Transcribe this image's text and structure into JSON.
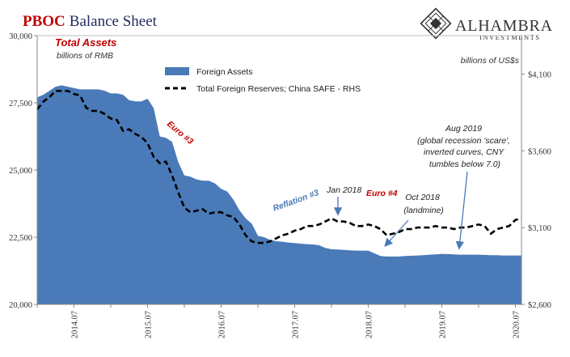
{
  "title_red": "PBOC",
  "title_navy": "Balance Sheet",
  "logo": {
    "name": "ALHAMBRA",
    "sub": "INVESTMENTS"
  },
  "colors": {
    "area": "#4a7ab8",
    "dash": "#000000",
    "red": "#c00000",
    "navy": "#1f2a5a",
    "blue_text": "#4a7ab8",
    "dark_text": "#333333"
  },
  "left_axis": {
    "title": "Total Assets",
    "unit": "billions of RMB",
    "ticks": [
      "30,000",
      "27,500",
      "25,000",
      "22,500",
      "20,000"
    ]
  },
  "right_axis": {
    "unit": "billions of US$s",
    "ticks": [
      "$4,100",
      "$3,600",
      "$3,100",
      "$2,600"
    ]
  },
  "legend": {
    "position": "top-left",
    "items": [
      "Foreign Assets",
      "Total Foreign Reserves; China SAFE - RHS"
    ]
  },
  "annotations": {
    "euro3": "Euro #3",
    "reflation3": "Reflation #3",
    "jan2018": "Jan 2018",
    "euro4": "Euro #4",
    "oct2018": [
      "Oct 2018",
      "(landmine)"
    ],
    "aug2019": [
      "Aug 2019",
      "(global recession 'scare',",
      "inverted curves, CNY",
      "tumbles below 7.0)"
    ]
  },
  "chart_data": {
    "type": "area",
    "title": "PBOC Balance Sheet",
    "x_ticks": [
      "2014.07",
      "2015.07",
      "2016.07",
      "2017.07",
      "2018.07",
      "2019.07",
      "2020.07"
    ],
    "x_range": [
      "2014-01",
      "2020-08"
    ],
    "ylim_left": [
      20000,
      30000
    ],
    "ylim_right": [
      2600,
      4350
    ],
    "grid": false,
    "legend_placement": "top-left",
    "series": [
      {
        "name": "Foreign Assets",
        "type": "area",
        "axis": "left",
        "x": [
          "2014-01",
          "2014-02",
          "2014-03",
          "2014-04",
          "2014-05",
          "2014-06",
          "2014-07",
          "2014-08",
          "2014-09",
          "2014-10",
          "2014-11",
          "2014-12",
          "2015-01",
          "2015-02",
          "2015-03",
          "2015-04",
          "2015-05",
          "2015-06",
          "2015-07",
          "2015-08",
          "2015-09",
          "2015-10",
          "2015-11",
          "2015-12",
          "2016-01",
          "2016-02",
          "2016-03",
          "2016-04",
          "2016-05",
          "2016-06",
          "2016-07",
          "2016-08",
          "2016-09",
          "2016-10",
          "2016-11",
          "2016-12",
          "2017-01",
          "2017-02",
          "2017-03",
          "2017-04",
          "2017-05",
          "2017-06",
          "2017-07",
          "2017-08",
          "2017-09",
          "2017-10",
          "2017-11",
          "2017-12",
          "2018-01",
          "2018-02",
          "2018-03",
          "2018-04",
          "2018-05",
          "2018-06",
          "2018-07",
          "2018-08",
          "2018-09",
          "2018-10",
          "2018-11",
          "2018-12",
          "2019-01",
          "2019-02",
          "2019-03",
          "2019-04",
          "2019-05",
          "2019-06",
          "2019-07",
          "2019-08",
          "2019-09",
          "2019-10",
          "2019-11",
          "2019-12",
          "2020-01",
          "2020-02",
          "2020-03",
          "2020-04",
          "2020-05",
          "2020-06",
          "2020-07",
          "2020-08"
        ],
        "values": [
          27700,
          27800,
          27950,
          28100,
          28150,
          28100,
          28050,
          28000,
          28000,
          28000,
          28000,
          27950,
          27850,
          27850,
          27800,
          27600,
          27550,
          27550,
          27650,
          27300,
          26250,
          26200,
          26050,
          25300,
          24800,
          24750,
          24650,
          24600,
          24600,
          24500,
          24300,
          24200,
          23900,
          23500,
          23200,
          23000,
          22550,
          22500,
          22400,
          22350,
          22330,
          22300,
          22280,
          22260,
          22240,
          22230,
          22200,
          22100,
          22050,
          22040,
          22030,
          22010,
          22000,
          22000,
          22000,
          21900,
          21800,
          21780,
          21780,
          21780,
          21800,
          21810,
          21820,
          21830,
          21850,
          21860,
          21880,
          21870,
          21860,
          21850,
          21850,
          21850,
          21850,
          21840,
          21830,
          21830,
          21820,
          21820,
          21820,
          21820
        ]
      },
      {
        "name": "Total Foreign Reserves; China SAFE - RHS",
        "type": "line",
        "axis": "right",
        "x": [
          "2014-01",
          "2014-02",
          "2014-03",
          "2014-04",
          "2014-05",
          "2014-06",
          "2014-07",
          "2014-08",
          "2014-09",
          "2014-10",
          "2014-11",
          "2014-12",
          "2015-01",
          "2015-02",
          "2015-03",
          "2015-04",
          "2015-05",
          "2015-06",
          "2015-07",
          "2015-08",
          "2015-09",
          "2015-10",
          "2015-11",
          "2015-12",
          "2016-01",
          "2016-02",
          "2016-03",
          "2016-04",
          "2016-05",
          "2016-06",
          "2016-07",
          "2016-08",
          "2016-09",
          "2016-10",
          "2016-11",
          "2016-12",
          "2017-01",
          "2017-02",
          "2017-03",
          "2017-04",
          "2017-05",
          "2017-06",
          "2017-07",
          "2017-08",
          "2017-09",
          "2017-10",
          "2017-11",
          "2017-12",
          "2018-01",
          "2018-02",
          "2018-03",
          "2018-04",
          "2018-05",
          "2018-06",
          "2018-07",
          "2018-08",
          "2018-09",
          "2018-10",
          "2018-11",
          "2018-12",
          "2019-01",
          "2019-02",
          "2019-03",
          "2019-04",
          "2019-05",
          "2019-06",
          "2019-07",
          "2019-08",
          "2019-09",
          "2019-10",
          "2019-11",
          "2019-12",
          "2020-01",
          "2020-02",
          "2020-03",
          "2020-04",
          "2020-05",
          "2020-06",
          "2020-07",
          "2020-08"
        ],
        "values": [
          3870,
          3920,
          3950,
          3990,
          3990,
          3990,
          3970,
          3960,
          3880,
          3860,
          3860,
          3840,
          3810,
          3800,
          3730,
          3740,
          3710,
          3690,
          3650,
          3560,
          3520,
          3530,
          3440,
          3330,
          3230,
          3200,
          3210,
          3220,
          3190,
          3200,
          3200,
          3180,
          3170,
          3120,
          3050,
          3010,
          3000,
          3000,
          3010,
          3030,
          3050,
          3060,
          3080,
          3090,
          3110,
          3110,
          3120,
          3140,
          3160,
          3140,
          3140,
          3130,
          3110,
          3110,
          3120,
          3110,
          3090,
          3050,
          3060,
          3070,
          3090,
          3090,
          3100,
          3100,
          3100,
          3110,
          3100,
          3100,
          3090,
          3100,
          3100,
          3110,
          3120,
          3110,
          3060,
          3090,
          3100,
          3110,
          3150,
          3160
        ]
      }
    ]
  }
}
